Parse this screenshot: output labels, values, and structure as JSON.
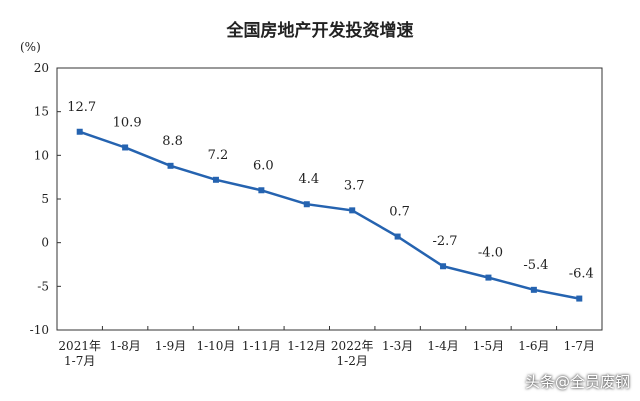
{
  "chart_data": {
    "type": "line",
    "title": "全国房地产开发投资增速",
    "ylabel": "(%)",
    "xlabel": "",
    "ylim": [
      -10,
      20
    ],
    "yticks": [
      20,
      15,
      10,
      5,
      0,
      -5,
      -10
    ],
    "grid": false,
    "legend": "none",
    "categories": [
      [
        "2021年",
        "1-7月"
      ],
      [
        "1-8月"
      ],
      [
        "1-9月"
      ],
      [
        "1-10月"
      ],
      [
        "1-11月"
      ],
      [
        "1-12月"
      ],
      [
        "2022年",
        "1-2月"
      ],
      [
        "1-3月"
      ],
      [
        "1-4月"
      ],
      [
        "1-5月"
      ],
      [
        "1-6月"
      ],
      [
        "1-7月"
      ]
    ],
    "values": [
      12.7,
      10.9,
      8.8,
      7.2,
      6.0,
      4.4,
      3.7,
      0.7,
      -2.7,
      -4.0,
      -5.4,
      -6.4
    ],
    "data_labels": [
      "12.7",
      "10.9",
      "8.8",
      "7.2",
      "6.0",
      "4.4",
      "3.7",
      "0.7",
      "-2.7",
      "-4.0",
      "-5.4",
      "-6.4"
    ],
    "line_color": "#2563b0"
  },
  "watermark": "头条@全员废钢"
}
